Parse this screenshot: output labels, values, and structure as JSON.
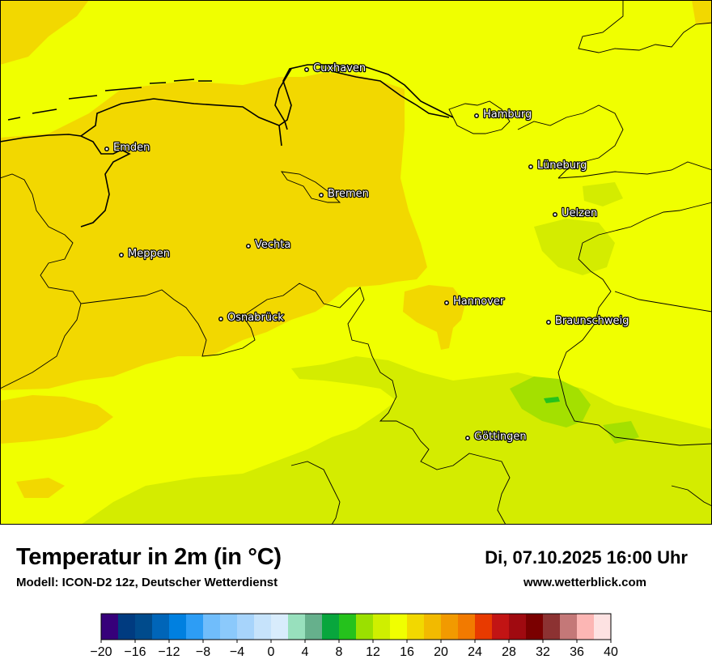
{
  "header": {
    "title": "Temperatur in 2m (in °C)",
    "subtitle": "Modell: ICON-D2 12z, Deutscher Wetterdienst",
    "datetime": "Di, 07.10.2025 16:00 Uhr",
    "website": "www.wetterblick.com"
  },
  "colors": {
    "yellow": "#f0ff00",
    "orange_yellow": "#f2d800",
    "light_green": "#d4ec00",
    "green": "#a4e000"
  },
  "cities": [
    {
      "name": "Cuxhaven"
    },
    {
      "name": "Hamburg"
    },
    {
      "name": "Emden"
    },
    {
      "name": "Lüneburg"
    },
    {
      "name": "Bremen"
    },
    {
      "name": "Uelzen"
    },
    {
      "name": "Vechta"
    },
    {
      "name": "Meppen"
    },
    {
      "name": "Hannover"
    },
    {
      "name": "Osnabrück"
    },
    {
      "name": "Braunschweig"
    },
    {
      "name": "Göttingen"
    }
  ],
  "legend": {
    "ticks": [
      "−20",
      "−16",
      "−12",
      "−8",
      "−4",
      "0",
      "4",
      "8",
      "12",
      "16",
      "20",
      "24",
      "28",
      "32",
      "36",
      "40"
    ],
    "colors": [
      "#36007a",
      "#003b80",
      "#004b8c",
      "#0065b8",
      "#0080e0",
      "#2d9df5",
      "#70bdfb",
      "#8bc9fb",
      "#a7d4fb",
      "#c6e3fb",
      "#d8ecfc",
      "#98e0bd",
      "#66b08c",
      "#08a63d",
      "#25c21c",
      "#9be000",
      "#cfef00",
      "#f0ff00",
      "#f2d800",
      "#f2ba00",
      "#f29a00",
      "#f27a00",
      "#e83a00",
      "#c21414",
      "#a00a10",
      "#7a0000",
      "#8c3232",
      "#c47878",
      "#fcb6b4",
      "#fde2e2"
    ]
  }
}
